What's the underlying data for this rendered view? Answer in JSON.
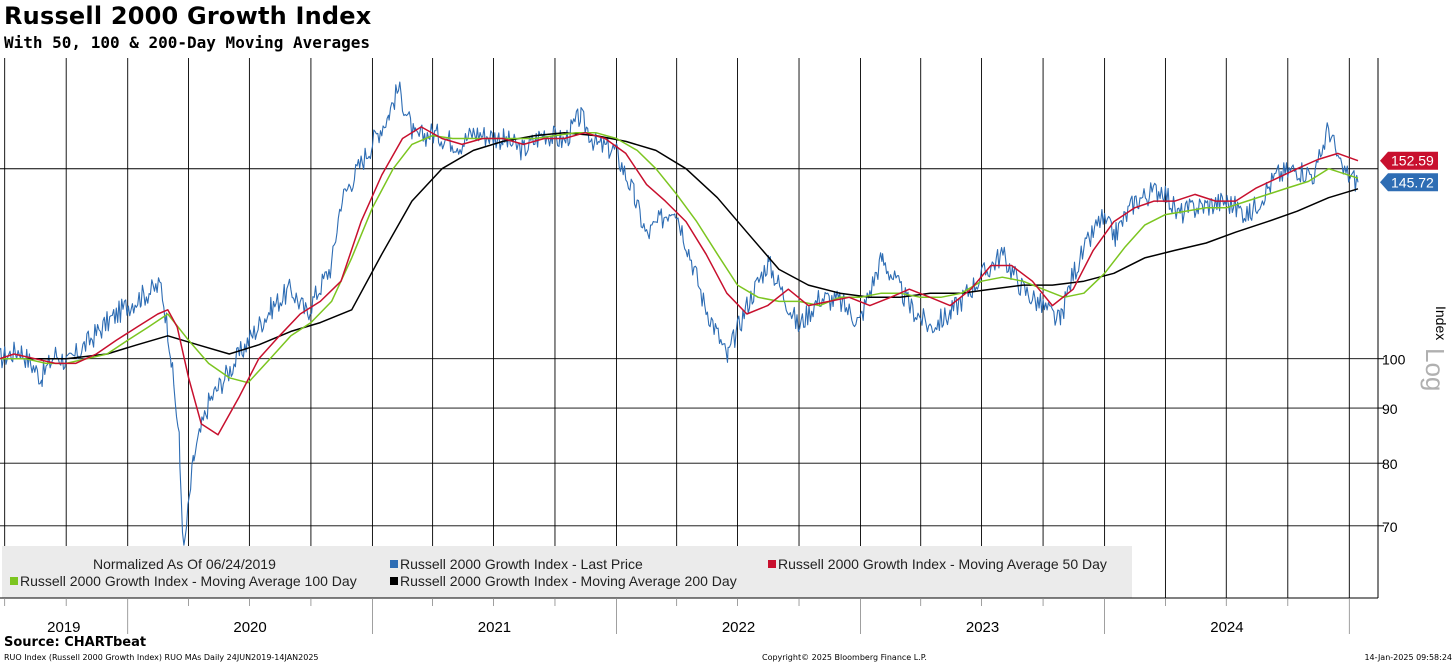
{
  "title": "Russell 2000 Growth Index",
  "subtitle": "With 50, 100 & 200-Day Moving Averages",
  "source": "Source: CHARTbeat",
  "footer": {
    "left": "RUO Index (Russell 2000 Growth Index) RUO MAs  Daily 24JUN2019-14JAN2025",
    "center": "Copyright© 2025 Bloomberg Finance L.P.",
    "right": "14-Jan-2025 09:58:24"
  },
  "colors": {
    "last": "#2e6db4",
    "ma50": "#c8102e",
    "ma100": "#7cc520",
    "ma200": "#000000"
  },
  "chart_data": {
    "type": "line",
    "y_scale": "log",
    "ylabel": "Index",
    "log_label": "Log",
    "ylim": [
      60,
      190
    ],
    "y_ticks": [
      70,
      80,
      90,
      100
    ],
    "x_years": [
      "2019",
      "2020",
      "2021",
      "2022",
      "2023",
      "2024"
    ],
    "xlim": [
      "2019-06-24",
      "2025-01-14"
    ],
    "grid": true,
    "normalized_note": "Normalized As Of 06/24/2019",
    "last_values": [
      {
        "series": "ma50",
        "label": "152.59"
      },
      {
        "series": "last",
        "label": "145.72"
      }
    ],
    "series": [
      {
        "key": "last",
        "name": "Russell 2000 Growth Index - Last Price",
        "x": [
          "2019-06-24",
          "2019-07-25",
          "2019-08-25",
          "2019-09-15",
          "2019-10-05",
          "2019-11-05",
          "2019-12-01",
          "2019-12-31",
          "2020-01-20",
          "2020-02-20",
          "2020-03-05",
          "2020-03-18",
          "2020-03-25",
          "2020-04-08",
          "2020-05-01",
          "2020-06-08",
          "2020-06-30",
          "2020-08-01",
          "2020-09-01",
          "2020-09-25",
          "2020-11-01",
          "2020-11-15",
          "2020-12-31",
          "2021-01-25",
          "2021-02-09",
          "2021-03-05",
          "2021-04-01",
          "2021-05-12",
          "2021-06-01",
          "2021-07-15",
          "2021-08-15",
          "2021-09-15",
          "2021-10-15",
          "2021-11-08",
          "2021-12-01",
          "2021-12-31",
          "2022-01-27",
          "2022-02-15",
          "2022-03-29",
          "2022-05-11",
          "2022-06-16",
          "2022-07-15",
          "2022-08-16",
          "2022-09-30",
          "2022-11-01",
          "2022-12-01",
          "2022-12-31",
          "2023-02-02",
          "2023-03-15",
          "2023-04-15",
          "2023-05-15",
          "2023-07-31",
          "2023-09-01",
          "2023-10-27",
          "2023-11-15",
          "2023-12-27",
          "2024-01-17",
          "2024-02-15",
          "2024-03-28",
          "2024-04-19",
          "2024-05-15",
          "2024-07-01",
          "2024-07-16",
          "2024-08-05",
          "2024-09-15",
          "2024-10-15",
          "2024-11-11",
          "2024-12-01",
          "2024-12-19",
          "2025-01-14"
        ],
        "y": [
          100,
          102,
          96,
          101,
          99,
          104,
          108,
          112,
          114,
          117,
          102,
          84,
          66,
          80,
          91,
          99,
          104,
          111,
          116,
          110,
          122,
          140,
          158,
          168,
          178,
          160,
          162,
          158,
          162,
          160,
          156,
          162,
          159,
          168,
          158,
          156,
          142,
          130,
          139,
          113,
          100,
          112,
          123,
          107,
          114,
          113,
          108,
          124,
          112,
          107,
          110,
          125,
          116,
          108,
          120,
          135,
          130,
          140,
          144,
          136,
          138,
          140,
          138,
          136,
          148,
          150,
          148,
          164,
          150,
          145.72
        ]
      },
      {
        "key": "ma50",
        "name": "Russell 2000 Growth Index - Moving Average 50 Day",
        "x": [
          "2019-06-24",
          "2019-07-15",
          "2019-08-15",
          "2019-09-15",
          "2019-10-15",
          "2019-11-15",
          "2019-12-15",
          "2020-01-15",
          "2020-02-15",
          "2020-03-01",
          "2020-03-15",
          "2020-04-01",
          "2020-04-20",
          "2020-05-15",
          "2020-06-15",
          "2020-07-15",
          "2020-08-15",
          "2020-09-15",
          "2020-10-15",
          "2020-11-15",
          "2020-12-15",
          "2021-01-15",
          "2021-02-15",
          "2021-03-15",
          "2021-04-15",
          "2021-05-15",
          "2021-06-15",
          "2021-07-15",
          "2021-08-15",
          "2021-09-15",
          "2021-10-15",
          "2021-11-15",
          "2021-12-15",
          "2022-01-15",
          "2022-02-15",
          "2022-03-15",
          "2022-04-15",
          "2022-05-15",
          "2022-06-15",
          "2022-07-15",
          "2022-08-15",
          "2022-09-15",
          "2022-10-15",
          "2022-11-15",
          "2022-12-15",
          "2023-01-15",
          "2023-02-15",
          "2023-03-15",
          "2023-04-15",
          "2023-05-15",
          "2023-06-15",
          "2023-07-15",
          "2023-08-15",
          "2023-09-15",
          "2023-10-15",
          "2023-11-15",
          "2023-12-15",
          "2024-01-15",
          "2024-02-15",
          "2024-03-15",
          "2024-04-15",
          "2024-05-15",
          "2024-06-15",
          "2024-07-15",
          "2024-08-15",
          "2024-09-15",
          "2024-10-15",
          "2024-11-15",
          "2024-12-15",
          "2025-01-14"
        ],
        "y": [
          100,
          101,
          100,
          99,
          99,
          101,
          104,
          107,
          110,
          111,
          107,
          96,
          87,
          85,
          92,
          100,
          105,
          110,
          113,
          118,
          134,
          148,
          160,
          164,
          160,
          158,
          160,
          160,
          158,
          160,
          160,
          162,
          160,
          155,
          145,
          140,
          134,
          125,
          115,
          110,
          112,
          116,
          112,
          113,
          114,
          112,
          114,
          116,
          114,
          112,
          116,
          122,
          122,
          118,
          112,
          116,
          126,
          134,
          138,
          140,
          140,
          142,
          140,
          140,
          144,
          147,
          150,
          153,
          155,
          152.59
        ]
      },
      {
        "key": "ma100",
        "name": "Russell 2000 Growth Index - Moving Average 100 Day",
        "x": [
          "2019-06-24",
          "2019-08-01",
          "2019-09-01",
          "2019-10-01",
          "2019-11-01",
          "2019-12-01",
          "2020-01-01",
          "2020-02-01",
          "2020-03-01",
          "2020-04-01",
          "2020-05-01",
          "2020-06-01",
          "2020-06-29",
          "2020-08-01",
          "2020-09-01",
          "2020-10-01",
          "2020-11-01",
          "2020-12-01",
          "2021-01-01",
          "2021-02-01",
          "2021-03-01",
          "2021-04-01",
          "2021-05-01",
          "2021-06-01",
          "2021-07-01",
          "2021-08-01",
          "2021-09-01",
          "2021-10-01",
          "2021-11-01",
          "2021-12-01",
          "2022-01-01",
          "2022-02-01",
          "2022-03-01",
          "2022-04-01",
          "2022-05-01",
          "2022-06-01",
          "2022-07-01",
          "2022-08-01",
          "2022-09-01",
          "2022-10-01",
          "2022-11-01",
          "2022-12-01",
          "2023-01-01",
          "2023-02-01",
          "2023-03-01",
          "2023-04-01",
          "2023-05-01",
          "2023-06-01",
          "2023-07-01",
          "2023-08-01",
          "2023-09-01",
          "2023-10-01",
          "2023-11-01",
          "2023-12-01",
          "2024-01-01",
          "2024-02-01",
          "2024-03-01",
          "2024-04-01",
          "2024-05-01",
          "2024-06-01",
          "2024-07-01",
          "2024-08-01",
          "2024-09-01",
          "2024-10-01",
          "2024-11-01",
          "2024-12-01",
          "2025-01-14"
        ],
        "y": [
          100,
          100,
          99,
          99,
          100,
          101,
          104,
          107,
          110,
          104,
          99,
          96,
          95,
          100,
          105,
          108,
          113,
          124,
          138,
          150,
          158,
          161,
          160,
          160,
          160,
          160,
          160,
          161,
          162,
          162,
          160,
          156,
          150,
          142,
          134,
          125,
          117,
          114,
          113,
          113,
          112,
          114,
          114,
          115,
          115,
          114,
          114,
          115,
          118,
          119,
          118,
          116,
          114,
          115,
          120,
          127,
          133,
          136,
          137,
          138,
          138,
          140,
          142,
          144,
          146,
          150,
          147
        ]
      },
      {
        "key": "ma200",
        "name": "Russell 2000 Growth Index - Moving Average 200 Day",
        "x": [
          "2019-06-24",
          "2019-08-01",
          "2019-10-01",
          "2019-12-01",
          "2020-01-15",
          "2020-03-01",
          "2020-04-15",
          "2020-06-01",
          "2020-07-15",
          "2020-09-01",
          "2020-10-15",
          "2020-12-01",
          "2021-01-15",
          "2021-03-01",
          "2021-04-15",
          "2021-06-01",
          "2021-07-15",
          "2021-09-01",
          "2021-10-15",
          "2021-12-01",
          "2022-01-15",
          "2022-03-01",
          "2022-04-15",
          "2022-06-01",
          "2022-07-15",
          "2022-09-01",
          "2022-10-15",
          "2022-12-01",
          "2023-01-15",
          "2023-03-01",
          "2023-04-15",
          "2023-06-01",
          "2023-07-15",
          "2023-09-01",
          "2023-10-15",
          "2023-12-01",
          "2024-01-15",
          "2024-03-01",
          "2024-04-15",
          "2024-06-01",
          "2024-07-15",
          "2024-09-01",
          "2024-10-15",
          "2024-12-01",
          "2025-01-14"
        ],
        "y": [
          100,
          100,
          100,
          101,
          103,
          105,
          103,
          101,
          103,
          106,
          108,
          111,
          125,
          140,
          150,
          156,
          159,
          161,
          162,
          161,
          159,
          156,
          150,
          141,
          131,
          121,
          117,
          115,
          114,
          114,
          115,
          115,
          116,
          117,
          117,
          118,
          120,
          124,
          126,
          128,
          131,
          134,
          137,
          141,
          143.71
        ]
      }
    ]
  }
}
